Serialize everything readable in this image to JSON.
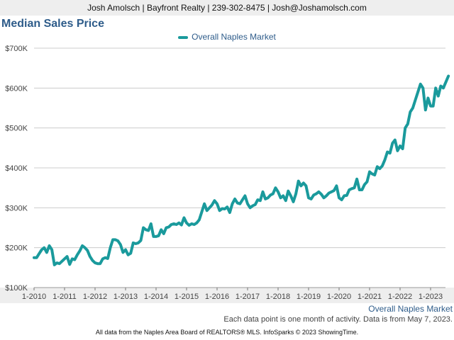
{
  "header": {
    "text": "Josh Amolsch | Bayfront Realty | 239-302-8475 | Josh@Joshamolsch.com"
  },
  "colors": {
    "series": "#1a9a9c",
    "title": "#2e5c8a",
    "grid": "#cccccc",
    "band": "#eeeeee"
  },
  "chart_data": {
    "type": "line",
    "title": "Median Sales Price",
    "xlabel": "Overall Naples Market",
    "ylabel": "",
    "ylim": [
      100000,
      700000
    ],
    "xlim": [
      "2010-01",
      "2023-06"
    ],
    "grid": true,
    "legend_position": "top-center",
    "yticks": [
      {
        "value": 100000,
        "label": "$100K"
      },
      {
        "value": 200000,
        "label": "$200K"
      },
      {
        "value": 300000,
        "label": "$300K"
      },
      {
        "value": 400000,
        "label": "$400K"
      },
      {
        "value": 500000,
        "label": "$500K"
      },
      {
        "value": 600000,
        "label": "$600K"
      },
      {
        "value": 700000,
        "label": "$700K"
      }
    ],
    "xticks": [
      "1-2010",
      "1-2011",
      "1-2012",
      "1-2013",
      "1-2014",
      "1-2015",
      "1-2016",
      "1-2017",
      "1-2018",
      "1-2019",
      "1-2020",
      "1-2021",
      "1-2022",
      "1-2023"
    ],
    "series": [
      {
        "name": "Overall Naples Market",
        "points": [
          [
            "2010-01",
            175000
          ],
          [
            "2010-02",
            175000
          ],
          [
            "2010-03",
            185000
          ],
          [
            "2010-04",
            195000
          ],
          [
            "2010-05",
            200000
          ],
          [
            "2010-06",
            188000
          ],
          [
            "2010-07",
            205000
          ],
          [
            "2010-08",
            195000
          ],
          [
            "2010-09",
            157000
          ],
          [
            "2010-10",
            162000
          ],
          [
            "2010-11",
            160000
          ],
          [
            "2010-12",
            166000
          ],
          [
            "2011-01",
            172000
          ],
          [
            "2011-02",
            178000
          ],
          [
            "2011-03",
            158000
          ],
          [
            "2011-04",
            172000
          ],
          [
            "2011-05",
            170000
          ],
          [
            "2011-06",
            182000
          ],
          [
            "2011-07",
            192000
          ],
          [
            "2011-08",
            205000
          ],
          [
            "2011-09",
            200000
          ],
          [
            "2011-10",
            193000
          ],
          [
            "2011-11",
            178000
          ],
          [
            "2011-12",
            168000
          ],
          [
            "2012-01",
            162000
          ],
          [
            "2012-02",
            160000
          ],
          [
            "2012-03",
            160000
          ],
          [
            "2012-04",
            172000
          ],
          [
            "2012-05",
            175000
          ],
          [
            "2012-06",
            173000
          ],
          [
            "2012-07",
            200000
          ],
          [
            "2012-08",
            220000
          ],
          [
            "2012-09",
            220000
          ],
          [
            "2012-10",
            217000
          ],
          [
            "2012-11",
            208000
          ],
          [
            "2012-12",
            188000
          ],
          [
            "2013-01",
            195000
          ],
          [
            "2013-02",
            182000
          ],
          [
            "2013-03",
            186000
          ],
          [
            "2013-04",
            212000
          ],
          [
            "2013-05",
            210000
          ],
          [
            "2013-06",
            212000
          ],
          [
            "2013-07",
            218000
          ],
          [
            "2013-08",
            250000
          ],
          [
            "2013-09",
            245000
          ],
          [
            "2013-10",
            243000
          ],
          [
            "2013-11",
            260000
          ],
          [
            "2013-12",
            228000
          ],
          [
            "2014-01",
            228000
          ],
          [
            "2014-02",
            230000
          ],
          [
            "2014-03",
            245000
          ],
          [
            "2014-04",
            235000
          ],
          [
            "2014-05",
            250000
          ],
          [
            "2014-06",
            252000
          ],
          [
            "2014-07",
            258000
          ],
          [
            "2014-08",
            260000
          ],
          [
            "2014-09",
            258000
          ],
          [
            "2014-10",
            262000
          ],
          [
            "2014-11",
            257000
          ],
          [
            "2014-12",
            275000
          ],
          [
            "2015-01",
            262000
          ],
          [
            "2015-02",
            256000
          ],
          [
            "2015-03",
            260000
          ],
          [
            "2015-04",
            258000
          ],
          [
            "2015-05",
            262000
          ],
          [
            "2015-06",
            270000
          ],
          [
            "2015-07",
            290000
          ],
          [
            "2015-08",
            310000
          ],
          [
            "2015-09",
            293000
          ],
          [
            "2015-10",
            300000
          ],
          [
            "2015-11",
            307000
          ],
          [
            "2015-12",
            318000
          ],
          [
            "2016-01",
            310000
          ],
          [
            "2016-02",
            293000
          ],
          [
            "2016-03",
            298000
          ],
          [
            "2016-04",
            297000
          ],
          [
            "2016-05",
            302000
          ],
          [
            "2016-06",
            288000
          ],
          [
            "2016-07",
            310000
          ],
          [
            "2016-08",
            322000
          ],
          [
            "2016-09",
            312000
          ],
          [
            "2016-10",
            310000
          ],
          [
            "2016-11",
            320000
          ],
          [
            "2016-12",
            330000
          ],
          [
            "2017-01",
            310000
          ],
          [
            "2017-02",
            300000
          ],
          [
            "2017-03",
            305000
          ],
          [
            "2017-04",
            308000
          ],
          [
            "2017-05",
            320000
          ],
          [
            "2017-06",
            318000
          ],
          [
            "2017-07",
            340000
          ],
          [
            "2017-08",
            322000
          ],
          [
            "2017-09",
            325000
          ],
          [
            "2017-10",
            332000
          ],
          [
            "2017-11",
            335000
          ],
          [
            "2017-12",
            350000
          ],
          [
            "2018-01",
            340000
          ],
          [
            "2018-02",
            325000
          ],
          [
            "2018-03",
            330000
          ],
          [
            "2018-04",
            318000
          ],
          [
            "2018-05",
            342000
          ],
          [
            "2018-06",
            330000
          ],
          [
            "2018-07",
            315000
          ],
          [
            "2018-08",
            335000
          ],
          [
            "2018-09",
            367000
          ],
          [
            "2018-10",
            355000
          ],
          [
            "2018-11",
            362000
          ],
          [
            "2018-12",
            355000
          ],
          [
            "2019-01",
            325000
          ],
          [
            "2019-02",
            322000
          ],
          [
            "2019-03",
            332000
          ],
          [
            "2019-04",
            335000
          ],
          [
            "2019-05",
            340000
          ],
          [
            "2019-06",
            334000
          ],
          [
            "2019-07",
            325000
          ],
          [
            "2019-08",
            330000
          ],
          [
            "2019-09",
            337000
          ],
          [
            "2019-10",
            340000
          ],
          [
            "2019-11",
            343000
          ],
          [
            "2019-12",
            355000
          ],
          [
            "2020-01",
            325000
          ],
          [
            "2020-02",
            320000
          ],
          [
            "2020-03",
            330000
          ],
          [
            "2020-04",
            331000
          ],
          [
            "2020-05",
            345000
          ],
          [
            "2020-06",
            348000
          ],
          [
            "2020-07",
            350000
          ],
          [
            "2020-08",
            372000
          ],
          [
            "2020-09",
            345000
          ],
          [
            "2020-10",
            345000
          ],
          [
            "2020-11",
            358000
          ],
          [
            "2020-12",
            365000
          ],
          [
            "2021-01",
            390000
          ],
          [
            "2021-02",
            385000
          ],
          [
            "2021-03",
            382000
          ],
          [
            "2021-04",
            403000
          ],
          [
            "2021-05",
            398000
          ],
          [
            "2021-06",
            405000
          ],
          [
            "2021-07",
            420000
          ],
          [
            "2021-08",
            440000
          ],
          [
            "2021-09",
            437000
          ],
          [
            "2021-10",
            462000
          ],
          [
            "2021-11",
            470000
          ],
          [
            "2021-12",
            443000
          ],
          [
            "2022-01",
            455000
          ],
          [
            "2022-02",
            448000
          ],
          [
            "2022-03",
            500000
          ],
          [
            "2022-04",
            510000
          ],
          [
            "2022-05",
            540000
          ],
          [
            "2022-06",
            550000
          ],
          [
            "2022-07",
            570000
          ],
          [
            "2022-08",
            590000
          ],
          [
            "2022-09",
            610000
          ],
          [
            "2022-10",
            600000
          ],
          [
            "2022-11",
            545000
          ],
          [
            "2022-12",
            575000
          ],
          [
            "2023-01",
            555000
          ],
          [
            "2023-02",
            555000
          ],
          [
            "2023-03",
            600000
          ],
          [
            "2023-04",
            580000
          ],
          [
            "2023-05",
            605000
          ],
          [
            "2023-06",
            600000
          ],
          [
            "2023-07",
            615000
          ],
          [
            "2023-08",
            630000
          ]
        ]
      }
    ]
  },
  "note": "Each data point is one month of activity. Data is from May 7, 2023.",
  "footer": "All data from the Naples Area Board of REALTORS® MLS. InfoSparks © 2023 ShowingTime."
}
